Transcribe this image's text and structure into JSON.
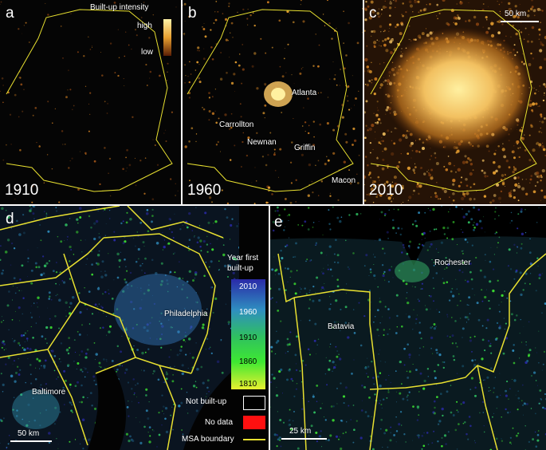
{
  "panels": {
    "a": {
      "letter": "a",
      "year": "1910"
    },
    "b": {
      "letter": "b",
      "year": "1960",
      "cities": [
        "Atlanta",
        "Carrollton",
        "Newnan",
        "Griffin",
        "Macon"
      ]
    },
    "c": {
      "letter": "c",
      "year": "2010",
      "scale": "50 km"
    },
    "d": {
      "letter": "d",
      "cities": [
        "Philadelphia",
        "Baltimore"
      ],
      "scale": "50 km"
    },
    "e": {
      "letter": "e",
      "cities": [
        "Rochester",
        "Batavia"
      ],
      "scale": "25 km"
    }
  },
  "legend_intensity": {
    "title": "Built-up intensity",
    "high": "high",
    "low": "low",
    "colors": {
      "high": "#fff2a8",
      "mid": "#e8a030",
      "low": "#5a1e05"
    }
  },
  "legend_year": {
    "title_line1": "Year first",
    "title_line2": "built-up",
    "ticks": [
      "2010",
      "1960",
      "1910",
      "1860",
      "1810"
    ],
    "colors": [
      "#2a2aa8",
      "#2f8fc0",
      "#2fc060",
      "#3ee832",
      "#e8f030"
    ],
    "not_built": "Not built-up",
    "no_data": "No data",
    "no_data_color": "#ff1010",
    "msa": "MSA boundary",
    "msa_color": "#e8e030"
  }
}
